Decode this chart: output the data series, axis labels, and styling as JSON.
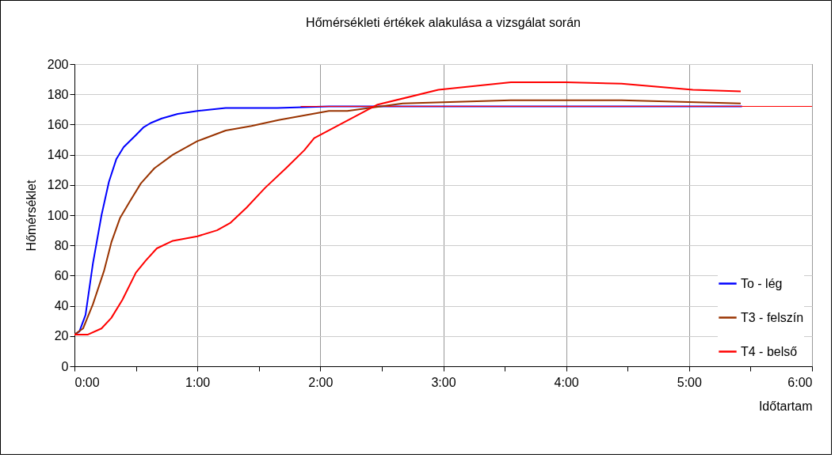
{
  "chart_data": {
    "type": "line",
    "title": "Hőmérsékleti értékek alakulása a vizsgálat során",
    "xlabel": "Időtartam",
    "ylabel": "Hőmérséklet",
    "xlim": [
      0,
      6
    ],
    "xticks": [
      {
        "value": 0,
        "label": "0:00"
      },
      {
        "value": 0.5,
        "label": null
      },
      {
        "value": 1,
        "label": "1:00"
      },
      {
        "value": 1.5,
        "label": null
      },
      {
        "value": 2,
        "label": "2:00"
      },
      {
        "value": 2.5,
        "label": null
      },
      {
        "value": 3,
        "label": "3:00"
      },
      {
        "value": 3.5,
        "label": null
      },
      {
        "value": 4,
        "label": "4:00"
      },
      {
        "value": 4.5,
        "label": null
      },
      {
        "value": 5,
        "label": "5:00"
      },
      {
        "value": 5.5,
        "label": null
      },
      {
        "value": 6,
        "label": "6:00"
      }
    ],
    "ylim": [
      0,
      200
    ],
    "yticks": [
      0,
      20,
      40,
      60,
      80,
      100,
      120,
      140,
      160,
      180,
      200
    ],
    "grid": true,
    "legend": "bottom right",
    "line_style": "solid",
    "series": [
      {
        "name": "To - lég",
        "color": "#0000ff",
        "x": [
          0,
          0.04,
          0.09,
          0.15,
          0.22,
          0.28,
          0.34,
          0.4,
          0.5,
          0.56,
          0.62,
          0.71,
          0.84,
          1,
          1.23,
          1.65,
          2.07,
          3,
          4,
          5,
          5.43
        ],
        "values": [
          21,
          23,
          34,
          68,
          100,
          122,
          137,
          145,
          153,
          158,
          161,
          164,
          167,
          169,
          171,
          171,
          172,
          172,
          172,
          172,
          172
        ]
      },
      {
        "name": "T3 - felszín",
        "color": "#993300",
        "x": [
          0,
          0.07,
          0.15,
          0.24,
          0.3,
          0.37,
          0.45,
          0.54,
          0.65,
          0.8,
          1,
          1.23,
          1.44,
          1.66,
          2.07,
          2.22,
          2.67,
          3.55,
          4.45,
          5.42
        ],
        "values": [
          21,
          25,
          41,
          63,
          82,
          98,
          109,
          121,
          131,
          140,
          149,
          156,
          159,
          163,
          169,
          169,
          174,
          176,
          176,
          174
        ]
      },
      {
        "name": "T4 - belső",
        "color": "#ff0000",
        "x": [
          0,
          0.11,
          0.22,
          0.3,
          0.39,
          0.5,
          0.58,
          0.67,
          0.8,
          1,
          1.16,
          1.27,
          1.4,
          1.55,
          1.72,
          1.87,
          1.95,
          2.46,
          2.96,
          3.55,
          4,
          4.45,
          5.03,
          5.42
        ],
        "values": [
          21,
          21,
          25,
          32,
          44,
          62,
          70,
          78,
          83,
          86,
          90,
          95,
          105,
          118,
          131,
          143,
          151,
          173,
          183,
          188,
          188,
          187,
          183,
          182
        ]
      },
      {
        "color": "#ff0000",
        "x": [
          1.84,
          6
        ],
        "values": [
          172,
          172
        ]
      }
    ]
  }
}
